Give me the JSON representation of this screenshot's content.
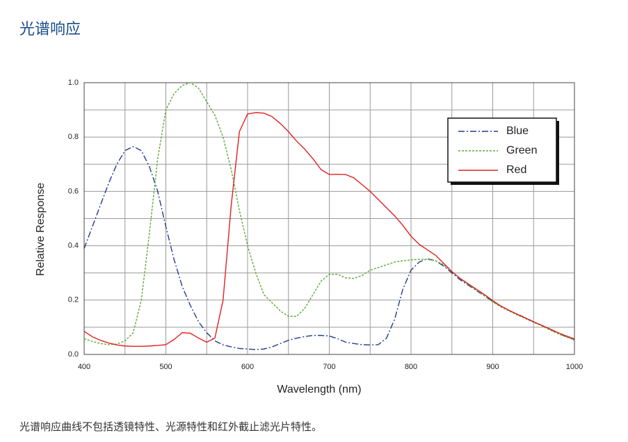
{
  "heading": "光谱响应",
  "caption": "光谱响应曲线不包括透镜特性、光源特性和红外截止滤光片特性。",
  "chart_data": {
    "type": "line",
    "xlabel": "Wavelength (nm)",
    "ylabel": "Relative Response",
    "x": [
      400,
      410,
      420,
      430,
      440,
      450,
      460,
      470,
      480,
      490,
      500,
      510,
      520,
      530,
      540,
      550,
      560,
      570,
      580,
      590,
      600,
      610,
      620,
      630,
      640,
      650,
      660,
      670,
      680,
      690,
      700,
      710,
      720,
      730,
      740,
      750,
      760,
      770,
      780,
      790,
      800,
      810,
      820,
      830,
      840,
      850,
      860,
      870,
      880,
      890,
      900,
      910,
      920,
      930,
      940,
      950,
      960,
      970,
      980,
      990,
      1000
    ],
    "series": [
      {
        "name": "Blue",
        "color": "#1f3c88",
        "dash": "dashdot",
        "values": [
          0.39,
          0.47,
          0.55,
          0.63,
          0.7,
          0.75,
          0.765,
          0.75,
          0.69,
          0.6,
          0.47,
          0.35,
          0.25,
          0.18,
          0.12,
          0.08,
          0.05,
          0.035,
          0.028,
          0.022,
          0.02,
          0.018,
          0.02,
          0.028,
          0.04,
          0.052,
          0.06,
          0.066,
          0.07,
          0.07,
          0.068,
          0.058,
          0.045,
          0.04,
          0.036,
          0.035,
          0.036,
          0.06,
          0.13,
          0.24,
          0.31,
          0.34,
          0.352,
          0.345,
          0.325,
          0.3,
          0.275,
          0.255,
          0.235,
          0.215,
          0.195,
          0.178,
          0.162,
          0.148,
          0.135,
          0.12,
          0.107,
          0.093,
          0.078,
          0.066,
          0.055
        ]
      },
      {
        "name": "Green",
        "color": "#5aa832",
        "dash": "dotted",
        "values": [
          0.058,
          0.048,
          0.04,
          0.036,
          0.038,
          0.05,
          0.08,
          0.2,
          0.45,
          0.72,
          0.9,
          0.96,
          0.99,
          1.0,
          0.98,
          0.93,
          0.88,
          0.8,
          0.68,
          0.53,
          0.4,
          0.3,
          0.22,
          0.19,
          0.16,
          0.14,
          0.14,
          0.17,
          0.22,
          0.27,
          0.295,
          0.295,
          0.282,
          0.28,
          0.29,
          0.31,
          0.32,
          0.33,
          0.34,
          0.345,
          0.348,
          0.35,
          0.35,
          0.345,
          0.33,
          0.305,
          0.28,
          0.258,
          0.237,
          0.215,
          0.193,
          0.175,
          0.16,
          0.145,
          0.132,
          0.118,
          0.105,
          0.09,
          0.076,
          0.064,
          0.052
        ]
      },
      {
        "name": "Red",
        "color": "#e02020",
        "dash": "solid",
        "values": [
          0.085,
          0.065,
          0.052,
          0.042,
          0.035,
          0.031,
          0.03,
          0.03,
          0.031,
          0.033,
          0.036,
          0.055,
          0.08,
          0.078,
          0.06,
          0.045,
          0.06,
          0.2,
          0.55,
          0.82,
          0.885,
          0.89,
          0.888,
          0.875,
          0.85,
          0.82,
          0.785,
          0.755,
          0.72,
          0.68,
          0.662,
          0.663,
          0.662,
          0.65,
          0.625,
          0.6,
          0.57,
          0.54,
          0.51,
          0.475,
          0.435,
          0.405,
          0.385,
          0.365,
          0.335,
          0.305,
          0.28,
          0.26,
          0.24,
          0.22,
          0.198,
          0.178,
          0.162,
          0.148,
          0.134,
          0.12,
          0.107,
          0.094,
          0.08,
          0.068,
          0.057
        ]
      }
    ],
    "xlim": [
      400,
      1000
    ],
    "xticks": [
      400,
      500,
      600,
      700,
      800,
      900,
      1000
    ],
    "ylim": [
      0,
      1
    ],
    "yticks": [
      {
        "value": 0,
        "label": "0.0"
      },
      0.2,
      0.4,
      0.6,
      0.8,
      {
        "value": 1,
        "label": "1.0"
      }
    ],
    "grid": true,
    "grid_subdivisions": 2,
    "legend": "upper right"
  }
}
